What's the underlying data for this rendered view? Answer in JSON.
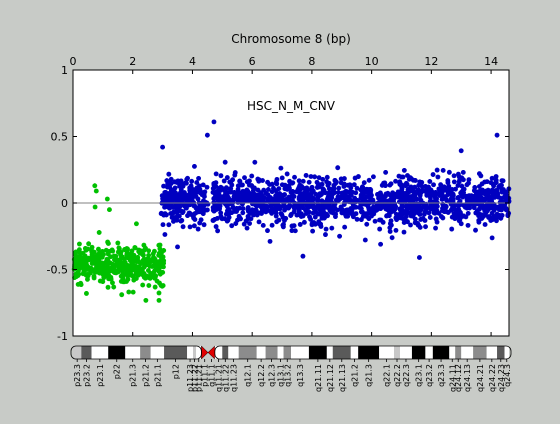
{
  "figure": {
    "background": "#c8cbc7",
    "plot_background": "#ffffff"
  },
  "chart_data": {
    "type": "scatter",
    "title": "Chromosome 8 (bp)",
    "annotation": "HSC_N_M_CNV",
    "xlabel": "",
    "ylabel": "",
    "x_axis_position": "top",
    "xlim": [
      0,
      14.6
    ],
    "ylim": [
      -1,
      1
    ],
    "x_ticks": [
      0,
      2,
      4,
      6,
      8,
      10,
      12,
      14
    ],
    "y_ticks": [
      -1,
      -0.5,
      0,
      0.5,
      1
    ],
    "y_tick_labels": [
      "-1",
      "-0.5",
      "0",
      "0.5",
      "1"
    ],
    "zero_line": true,
    "grid": false,
    "legend": "none",
    "series": [
      {
        "color": "#00c000",
        "x_range": [
          0,
          3.05
        ],
        "mean": -0.47,
        "typical_spread": [
          -0.62,
          -0.3
        ],
        "notable_points": [
          [
            0.73,
            0.13
          ],
          [
            0.78,
            0.09
          ],
          [
            0.74,
            -0.03
          ],
          [
            1.15,
            0.03
          ],
          [
            1.22,
            -0.05
          ],
          [
            0.45,
            -0.68
          ],
          [
            2.95,
            -0.62
          ]
        ]
      },
      {
        "color": "#0000c0",
        "x_range": [
          2.95,
          14.6
        ],
        "mean": 0.02,
        "gap": [
          4.52,
          4.68
        ],
        "typical_spread": [
          -0.18,
          0.22
        ],
        "notable_points": [
          [
            4.72,
            0.61
          ],
          [
            4.5,
            0.51
          ],
          [
            3.0,
            0.42
          ],
          [
            14.2,
            0.51
          ],
          [
            7.7,
            -0.4
          ],
          [
            11.6,
            -0.41
          ],
          [
            3.5,
            -0.33
          ],
          [
            10.3,
            -0.31
          ]
        ]
      }
    ]
  },
  "ideogram": {
    "bands": [
      {
        "label": "p23.3",
        "x0": 0.0,
        "x1": 0.28,
        "stain": "gpos25"
      },
      {
        "label": "p23.2",
        "x0": 0.28,
        "x1": 0.62,
        "stain": "gpos75"
      },
      {
        "label": "p23.1",
        "x0": 0.62,
        "x1": 1.18,
        "stain": "gneg"
      },
      {
        "label": "p22",
        "x0": 1.18,
        "x1": 1.75,
        "stain": "gpos100"
      },
      {
        "label": "p21.3",
        "x0": 1.75,
        "x1": 2.25,
        "stain": "gneg"
      },
      {
        "label": "p21.2",
        "x0": 2.25,
        "x1": 2.6,
        "stain": "gpos50"
      },
      {
        "label": "p21.1",
        "x0": 2.6,
        "x1": 3.05,
        "stain": "gneg"
      },
      {
        "label": "p12",
        "x0": 3.05,
        "x1": 3.82,
        "stain": "gpos75"
      },
      {
        "label": "p11.23",
        "x0": 3.82,
        "x1": 4.02,
        "stain": "gneg"
      },
      {
        "label": "p11.22",
        "x0": 4.02,
        "x1": 4.12,
        "stain": "gpos25"
      },
      {
        "label": "p11.21",
        "x0": 4.12,
        "x1": 4.3,
        "stain": "gneg"
      },
      {
        "label": "p11.1",
        "x0": 4.3,
        "x1": 4.52,
        "stain": "acen"
      },
      {
        "label": "q11.1",
        "x0": 4.52,
        "x1": 4.75,
        "stain": "acen"
      },
      {
        "label": "q11.21",
        "x0": 4.75,
        "x1": 5.0,
        "stain": "gneg"
      },
      {
        "label": "q11.22",
        "x0": 5.0,
        "x1": 5.2,
        "stain": "gpos75"
      },
      {
        "label": "q11.23",
        "x0": 5.2,
        "x1": 5.55,
        "stain": "gneg"
      },
      {
        "label": "q12.1",
        "x0": 5.55,
        "x1": 6.15,
        "stain": "gpos50"
      },
      {
        "label": "q12.2",
        "x0": 6.15,
        "x1": 6.45,
        "stain": "gneg"
      },
      {
        "label": "q12.3",
        "x0": 6.45,
        "x1": 6.85,
        "stain": "gpos50"
      },
      {
        "label": "q13.1",
        "x0": 6.85,
        "x1": 7.05,
        "stain": "gneg"
      },
      {
        "label": "q13.2",
        "x0": 7.05,
        "x1": 7.3,
        "stain": "gpos50"
      },
      {
        "label": "q13.3",
        "x0": 7.3,
        "x1": 7.9,
        "stain": "gneg"
      },
      {
        "label": "q21.11",
        "x0": 7.9,
        "x1": 8.5,
        "stain": "gpos100"
      },
      {
        "label": "q21.12",
        "x0": 8.5,
        "x1": 8.7,
        "stain": "gneg"
      },
      {
        "label": "q21.13",
        "x0": 8.7,
        "x1": 9.3,
        "stain": "gpos75"
      },
      {
        "label": "q21.2",
        "x0": 9.3,
        "x1": 9.55,
        "stain": "gneg"
      },
      {
        "label": "q21.3",
        "x0": 9.55,
        "x1": 10.25,
        "stain": "gpos100"
      },
      {
        "label": "q22.1",
        "x0": 10.25,
        "x1": 10.75,
        "stain": "gneg"
      },
      {
        "label": "q22.2",
        "x0": 10.75,
        "x1": 10.95,
        "stain": "gpos25"
      },
      {
        "label": "q22.3",
        "x0": 10.95,
        "x1": 11.35,
        "stain": "gneg"
      },
      {
        "label": "q23.1",
        "x0": 11.35,
        "x1": 11.8,
        "stain": "gpos100"
      },
      {
        "label": "q23.2",
        "x0": 11.8,
        "x1": 12.05,
        "stain": "gneg"
      },
      {
        "label": "q23.3",
        "x0": 12.05,
        "x1": 12.6,
        "stain": "gpos100"
      },
      {
        "label": "q24.11",
        "x0": 12.6,
        "x1": 12.8,
        "stain": "gneg"
      },
      {
        "label": "q24.12",
        "x0": 12.8,
        "x1": 13.0,
        "stain": "gpos50"
      },
      {
        "label": "q24.13",
        "x0": 13.0,
        "x1": 13.4,
        "stain": "gneg"
      },
      {
        "label": "q24.21",
        "x0": 13.4,
        "x1": 13.85,
        "stain": "gpos50"
      },
      {
        "label": "q24.22",
        "x0": 13.85,
        "x1": 14.2,
        "stain": "gneg"
      },
      {
        "label": "q24.23",
        "x0": 14.2,
        "x1": 14.45,
        "stain": "gpos75"
      },
      {
        "label": "q24.3",
        "x0": 14.45,
        "x1": 14.6,
        "stain": "gneg"
      }
    ],
    "stain_colors": {
      "gneg": "#ffffff",
      "gpos25": "#c8c8c8",
      "gpos50": "#8c8c8c",
      "gpos75": "#5a5a5a",
      "gpos100": "#000000",
      "acen": "#e00000"
    }
  }
}
